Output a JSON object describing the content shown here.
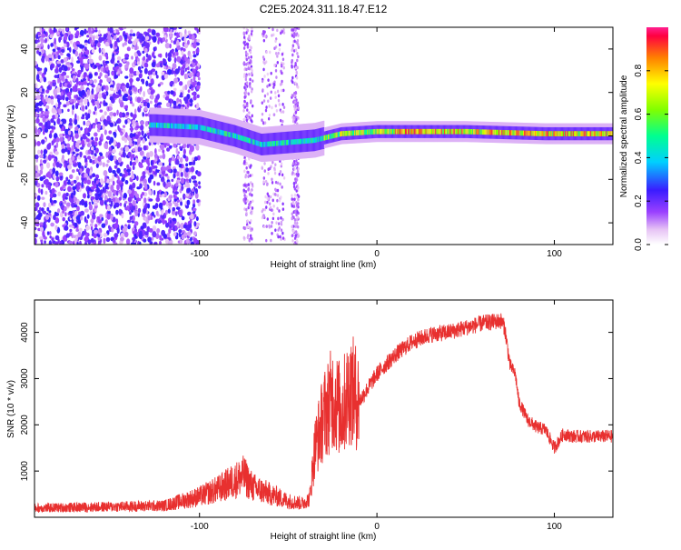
{
  "title": "C2E5.2024.311.18.47.E12",
  "chart_data": [
    {
      "type": "heatmap",
      "xlabel": "Height of straight line (km)",
      "ylabel": "Frequency (Hz)",
      "xlim": [
        -193,
        133
      ],
      "ylim": [
        -50,
        50
      ],
      "x_ticks": [
        -100,
        0,
        100
      ],
      "y_ticks": [
        -40,
        -20,
        0,
        20,
        40
      ],
      "colorbar": {
        "label": "Normalized spectral amplitude",
        "range": [
          0,
          1
        ],
        "ticks": [
          0.0,
          0.2,
          0.4,
          0.6,
          0.8
        ]
      },
      "ridge": [
        {
          "x": -125,
          "f": 5
        },
        {
          "x": -100,
          "f": 4
        },
        {
          "x": -80,
          "f": 0
        },
        {
          "x": -65,
          "f": -4
        },
        {
          "x": -50,
          "f": -3
        },
        {
          "x": -35,
          "f": -2
        },
        {
          "x": -20,
          "f": 1
        },
        {
          "x": 0,
          "f": 2
        },
        {
          "x": 50,
          "f": 2
        },
        {
          "x": 95,
          "f": 1
        },
        {
          "x": 133,
          "f": 1
        }
      ],
      "grid": false
    },
    {
      "type": "line",
      "xlabel": "Height of straight line (km)",
      "ylabel": "SNR (10 * v/v)",
      "xlim": [
        -193,
        133
      ],
      "ylim": [
        0,
        4700
      ],
      "x_ticks": [
        -100,
        0,
        100
      ],
      "y_ticks": [
        1000,
        2000,
        3000,
        4000
      ],
      "color": "#e8302f",
      "series": [
        {
          "x": [
            -193,
            -160,
            -120,
            -100,
            -90,
            -80,
            -75,
            -70,
            -60,
            -50,
            -42,
            -38,
            -35,
            -30,
            -25,
            -20,
            -15,
            -10,
            -5,
            0,
            10,
            20,
            30,
            40,
            50,
            60,
            70,
            72,
            75,
            78,
            80,
            85,
            90,
            95,
            100,
            105,
            110,
            120,
            133
          ],
          "y": [
            200,
            220,
            250,
            450,
            600,
            800,
            900,
            650,
            500,
            350,
            300,
            400,
            1500,
            2200,
            2600,
            2300,
            2800,
            2500,
            2800,
            3100,
            3500,
            3800,
            3950,
            4000,
            4100,
            4200,
            4250,
            4100,
            3300,
            3100,
            2500,
            2100,
            1950,
            1900,
            1500,
            1800,
            1750,
            1750,
            1750
          ]
        }
      ],
      "grid": false
    }
  ]
}
